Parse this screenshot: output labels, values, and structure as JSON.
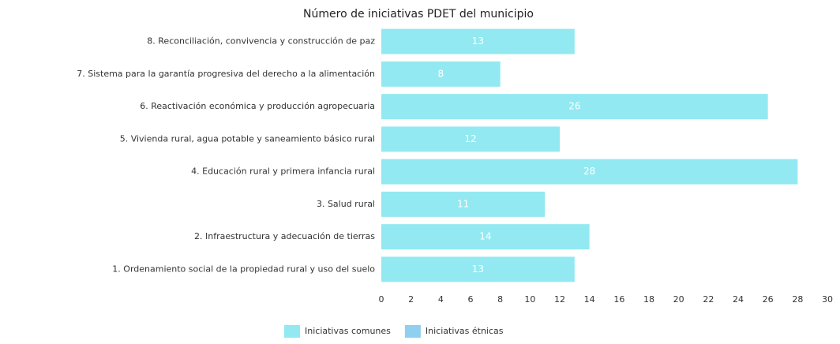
{
  "chart_data": {
    "type": "bar",
    "orientation": "horizontal",
    "stacked": true,
    "title": "Número de iniciativas PDET del municipio",
    "categories": [
      "8. Reconciliación, convivencia y construcción de paz",
      "7. Sistema para la garantía progresiva del derecho a la alimentación",
      "6. Reactivación económica y producción agropecuaria",
      "5. Vivienda rural, agua potable y saneamiento básico rural",
      "4. Educación rural y primera infancia rural",
      "3. Salud rural",
      "2. Infraestructura y adecuación de tierras",
      "1. Ordenamiento social de la propiedad rural y uso del suelo"
    ],
    "series": [
      {
        "name": "Iniciativas comunes",
        "color": "#93e9f1",
        "values": [
          13,
          8,
          26,
          12,
          28,
          11,
          14,
          13
        ]
      },
      {
        "name": "Iniciativas étnicas",
        "color": "#8fcff0",
        "values": [
          0,
          0,
          0,
          0,
          0,
          0,
          0,
          0
        ]
      }
    ],
    "xlim": [
      0,
      30
    ],
    "xticks": [
      0,
      2,
      4,
      6,
      8,
      10,
      12,
      14,
      16,
      18,
      20,
      22,
      24,
      26,
      28,
      30
    ],
    "legend": "bottom"
  }
}
